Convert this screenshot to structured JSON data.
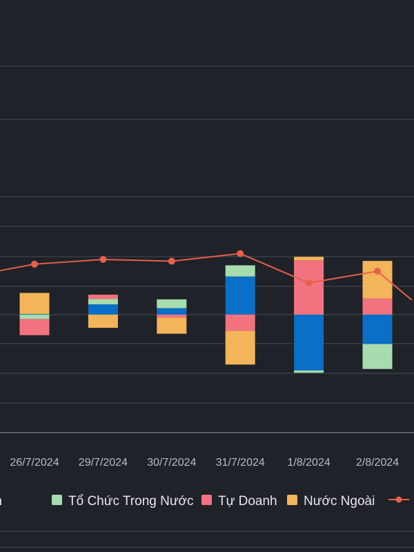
{
  "chart_data": {
    "type": "bar",
    "stacked": true,
    "categories": [
      "26/7/2024",
      "29/7/2024",
      "30/7/2024",
      "31/7/2024",
      "1/8/2024",
      "2/8/2024"
    ],
    "series": [
      {
        "name": "Cá Nhân",
        "color": "#0a6fc6",
        "values": [
          2,
          35,
          22,
          130,
          -190,
          -100
        ]
      },
      {
        "name": "Tổ Chức Trong Nước",
        "color": "#a6dcae",
        "values": [
          -15,
          18,
          30,
          38,
          -8,
          -85
        ]
      },
      {
        "name": "Tự Doanh",
        "color": "#f2737f",
        "values": [
          -55,
          15,
          -10,
          -55,
          185,
          55
        ]
      },
      {
        "name": "Nước Ngoài",
        "color": "#f4b45a",
        "values": [
          72,
          -45,
          -55,
          -115,
          12,
          128
        ]
      }
    ],
    "line": {
      "color": "#e8604c",
      "values": [
        172,
        188,
        182,
        208,
        108,
        148
      ]
    },
    "line_lead_in": 150,
    "line_tail": 50,
    "ylim": [
      -400,
      400
    ],
    "grid": true,
    "legend": {
      "position": "bottom",
      "items": [
        {
          "label": "Cá Nhân",
          "color": "#0a6fc6",
          "kind": "box"
        },
        {
          "label": "Tổ Chức Trong Nước",
          "color": "#a6dcae",
          "kind": "box"
        },
        {
          "label": "Tự Doanh",
          "color": "#f2737f",
          "kind": "box"
        },
        {
          "label": "Nước Ngoài",
          "color": "#f4b45a",
          "kind": "box"
        },
        {
          "label": "",
          "color": "#e8604c",
          "kind": "line"
        }
      ]
    }
  }
}
